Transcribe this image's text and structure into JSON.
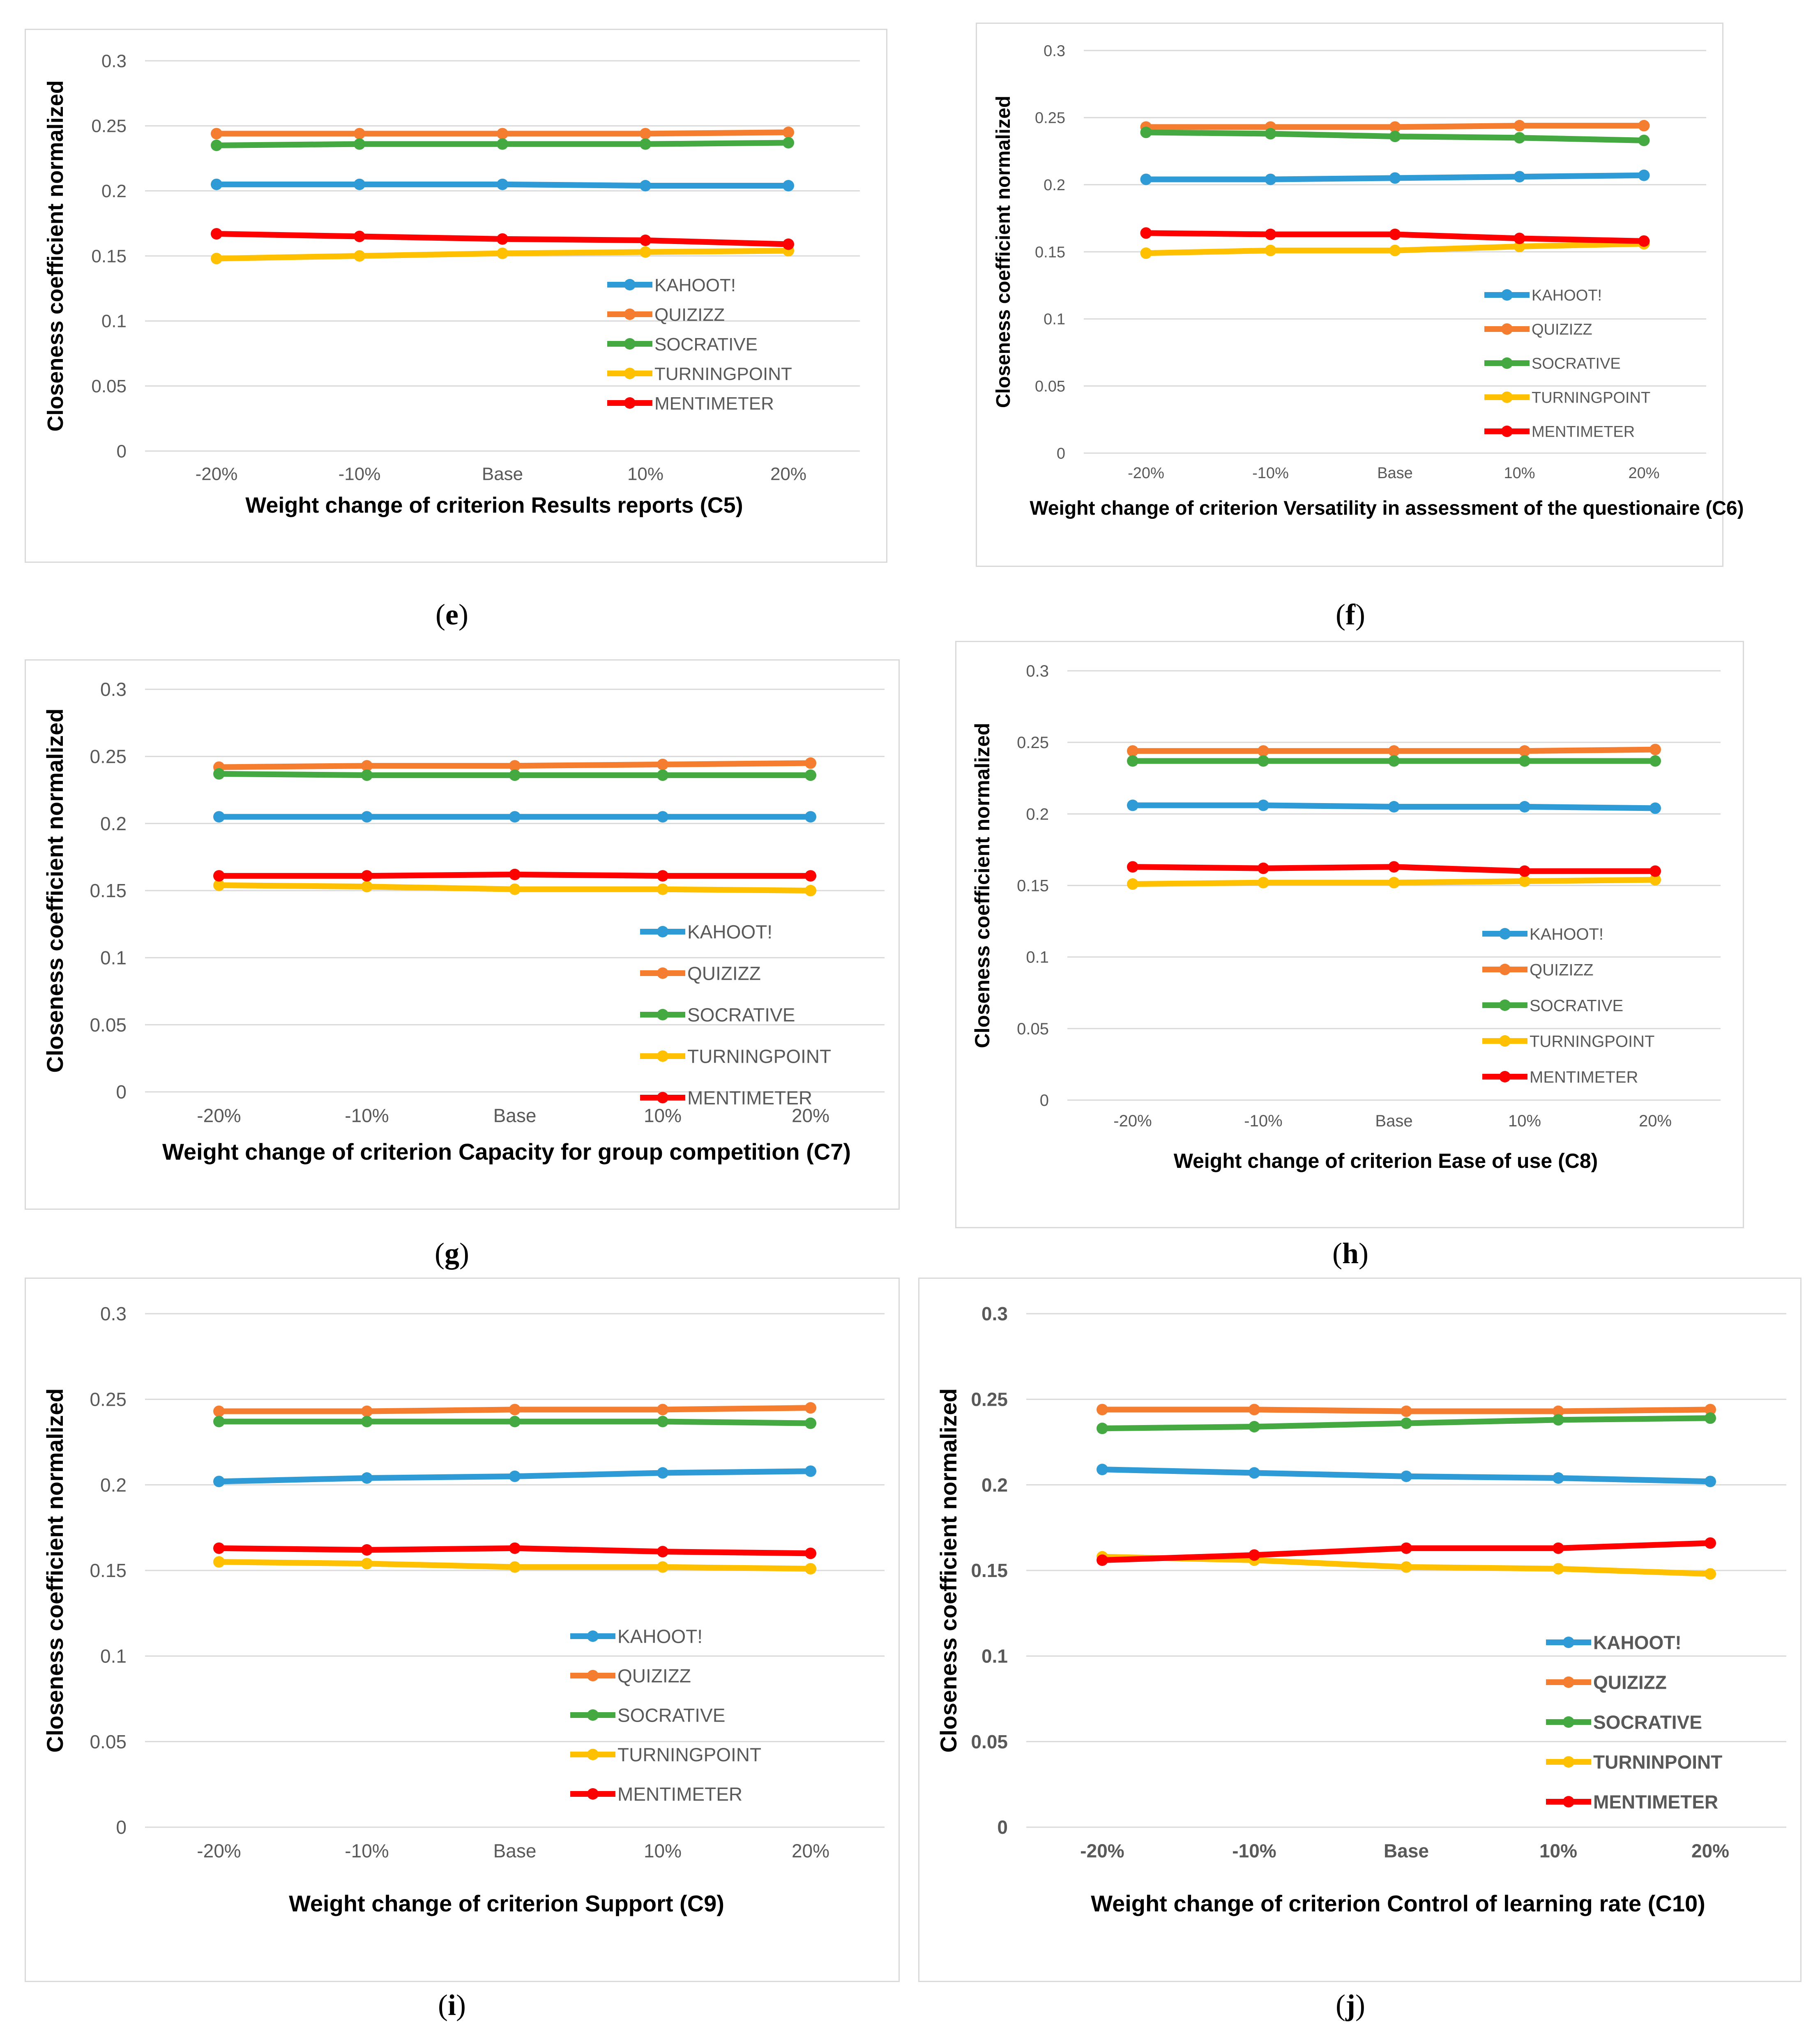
{
  "captions": {
    "e": [
      "(",
      "e",
      ")"
    ],
    "f": [
      "(",
      "f",
      ")"
    ],
    "g": [
      "(",
      "g",
      ")"
    ],
    "h": [
      "(",
      "h",
      ")"
    ],
    "i": [
      "(",
      "i",
      ")"
    ],
    "j": [
      "(",
      "j",
      ")"
    ]
  },
  "chart_data": [
    {
      "id": "e",
      "type": "line",
      "title": "",
      "xlabel": "Weight change of criterion  Results reports (C5)",
      "ylabel": "Closeness coefficient normalized",
      "categories": [
        "-20%",
        "-10%",
        "Base",
        "10%",
        "20%"
      ],
      "yticks": [
        "0",
        "0.05",
        "0.1",
        "0.15",
        "0.2",
        "0.25",
        "0.3"
      ],
      "ylim": [
        0,
        0.3
      ],
      "grid": true,
      "legend": "bottom-right",
      "series": [
        {
          "name": "KAHOOT!",
          "color": "#2e9ad6",
          "values": [
            0.205,
            0.205,
            0.205,
            0.204,
            0.204
          ]
        },
        {
          "name": "QUIZIZZ",
          "color": "#f47d30",
          "values": [
            0.244,
            0.244,
            0.244,
            0.244,
            0.245
          ]
        },
        {
          "name": "SOCRATIVE",
          "color": "#43a940",
          "values": [
            0.235,
            0.236,
            0.236,
            0.236,
            0.237
          ]
        },
        {
          "name": "TURNINGPOINT",
          "color": "#ffc000",
          "values": [
            0.148,
            0.15,
            0.152,
            0.153,
            0.154
          ]
        },
        {
          "name": "MENTIMETER",
          "color": "#ff0000",
          "values": [
            0.167,
            0.165,
            0.163,
            0.162,
            0.159
          ]
        }
      ]
    },
    {
      "id": "f",
      "type": "line",
      "title": "",
      "xlabel": "Weight change of criterion  Versatility  in assessment  of the questionaire (C6)",
      "ylabel": "Closeness coefficient normalized",
      "categories": [
        "-20%",
        "-10%",
        "Base",
        "10%",
        "20%"
      ],
      "yticks": [
        "0",
        "0.05",
        "0.1",
        "0.15",
        "0.2",
        "0.25",
        "0.3"
      ],
      "ylim": [
        0,
        0.3
      ],
      "grid": true,
      "legend": "bottom-right",
      "series": [
        {
          "name": "KAHOOT!",
          "color": "#2e9ad6",
          "values": [
            0.204,
            0.204,
            0.205,
            0.206,
            0.207
          ]
        },
        {
          "name": "QUIZIZZ",
          "color": "#f47d30",
          "values": [
            0.243,
            0.243,
            0.243,
            0.244,
            0.244
          ]
        },
        {
          "name": "SOCRATIVE",
          "color": "#43a940",
          "values": [
            0.239,
            0.238,
            0.236,
            0.235,
            0.233
          ]
        },
        {
          "name": "TURNINGPOINT",
          "color": "#ffc000",
          "values": [
            0.149,
            0.151,
            0.151,
            0.154,
            0.156
          ]
        },
        {
          "name": "MENTIMETER",
          "color": "#ff0000",
          "values": [
            0.164,
            0.163,
            0.163,
            0.16,
            0.158
          ]
        }
      ]
    },
    {
      "id": "g",
      "type": "line",
      "title": "",
      "xlabel": "Weight change of criterion  Capacity for group competition  (C7)",
      "ylabel": "Closeness coefficient normalized",
      "categories": [
        "-20%",
        "-10%",
        "Base",
        "10%",
        "20%"
      ],
      "yticks": [
        "0",
        "0.05",
        "0.1",
        "0.15",
        "0.2",
        "0.25",
        "0.3"
      ],
      "ylim": [
        0,
        0.3
      ],
      "grid": true,
      "legend": "bottom-right",
      "series": [
        {
          "name": "KAHOOT!",
          "color": "#2e9ad6",
          "values": [
            0.205,
            0.205,
            0.205,
            0.205,
            0.205
          ]
        },
        {
          "name": "QUIZIZZ",
          "color": "#f47d30",
          "values": [
            0.242,
            0.243,
            0.243,
            0.244,
            0.245
          ]
        },
        {
          "name": "SOCRATIVE",
          "color": "#43a940",
          "values": [
            0.237,
            0.236,
            0.236,
            0.236,
            0.236
          ]
        },
        {
          "name": "TURNINGPOINT",
          "color": "#ffc000",
          "values": [
            0.154,
            0.153,
            0.151,
            0.151,
            0.15
          ]
        },
        {
          "name": "MENTIMETER",
          "color": "#ff0000",
          "values": [
            0.161,
            0.161,
            0.162,
            0.161,
            0.161
          ]
        }
      ]
    },
    {
      "id": "h",
      "type": "line",
      "title": "",
      "xlabel": "Weight change of criterion  Ease of use (C8)",
      "ylabel": "Closeness coefficient normalized",
      "categories": [
        "-20%",
        "-10%",
        "Base",
        "10%",
        "20%"
      ],
      "yticks": [
        "0",
        "0.05",
        "0.1",
        "0.15",
        "0.2",
        "0.25",
        "0.3"
      ],
      "ylim": [
        0,
        0.3
      ],
      "grid": true,
      "legend": "bottom-right",
      "series": [
        {
          "name": "KAHOOT!",
          "color": "#2e9ad6",
          "values": [
            0.206,
            0.206,
            0.205,
            0.205,
            0.204
          ]
        },
        {
          "name": "QUIZIZZ",
          "color": "#f47d30",
          "values": [
            0.244,
            0.244,
            0.244,
            0.244,
            0.245
          ]
        },
        {
          "name": "SOCRATIVE",
          "color": "#43a940",
          "values": [
            0.237,
            0.237,
            0.237,
            0.237,
            0.237
          ]
        },
        {
          "name": "TURNINGPOINT",
          "color": "#ffc000",
          "values": [
            0.151,
            0.152,
            0.152,
            0.153,
            0.154
          ]
        },
        {
          "name": "MENTIMETER",
          "color": "#ff0000",
          "values": [
            0.163,
            0.162,
            0.163,
            0.16,
            0.16
          ]
        }
      ]
    },
    {
      "id": "i",
      "type": "line",
      "title": "",
      "xlabel": "Weight change of criterion  Support (C9)",
      "ylabel": "Closeness coefficient normalized",
      "categories": [
        "-20%",
        "-10%",
        "Base",
        "10%",
        "20%"
      ],
      "yticks": [
        "0",
        "0.05",
        "0.1",
        "0.15",
        "0.2",
        "0.25",
        "0.3"
      ],
      "ylim": [
        0,
        0.3
      ],
      "grid": true,
      "legend": "bottom-right",
      "series": [
        {
          "name": "KAHOOT!",
          "color": "#2e9ad6",
          "values": [
            0.202,
            0.204,
            0.205,
            0.207,
            0.208
          ]
        },
        {
          "name": "QUIZIZZ",
          "color": "#f47d30",
          "values": [
            0.243,
            0.243,
            0.244,
            0.244,
            0.245
          ]
        },
        {
          "name": "SOCRATIVE",
          "color": "#43a940",
          "values": [
            0.237,
            0.237,
            0.237,
            0.237,
            0.236
          ]
        },
        {
          "name": "TURNINGPOINT",
          "color": "#ffc000",
          "values": [
            0.155,
            0.154,
            0.152,
            0.152,
            0.151
          ]
        },
        {
          "name": "MENTIMETER",
          "color": "#ff0000",
          "values": [
            0.163,
            0.162,
            0.163,
            0.161,
            0.16
          ]
        }
      ]
    },
    {
      "id": "j",
      "type": "line",
      "title": "",
      "xlabel": "Weight change of criterion  Control of learning rate (C10)",
      "ylabel": "Closeness coefficient normalized",
      "categories": [
        "-20%",
        "-10%",
        "Base",
        "10%",
        "20%"
      ],
      "yticks": [
        "0",
        "0.05",
        "0.1",
        "0.15",
        "0.2",
        "0.25",
        "0.3"
      ],
      "ylim": [
        0,
        0.3
      ],
      "grid": true,
      "legend": "bottom-right",
      "series": [
        {
          "name": "KAHOOT!",
          "color": "#2e9ad6",
          "values": [
            0.209,
            0.207,
            0.205,
            0.204,
            0.202
          ]
        },
        {
          "name": "QUIZIZZ",
          "color": "#f47d30",
          "values": [
            0.244,
            0.244,
            0.243,
            0.243,
            0.244
          ]
        },
        {
          "name": "SOCRATIVE",
          "color": "#43a940",
          "values": [
            0.233,
            0.234,
            0.236,
            0.238,
            0.239
          ]
        },
        {
          "name": "TURNINPOINT",
          "color": "#ffc000",
          "values": [
            0.158,
            0.156,
            0.152,
            0.151,
            0.148
          ]
        },
        {
          "name": "MENTIMETER",
          "color": "#ff0000",
          "values": [
            0.156,
            0.159,
            0.163,
            0.163,
            0.166
          ]
        }
      ]
    }
  ]
}
